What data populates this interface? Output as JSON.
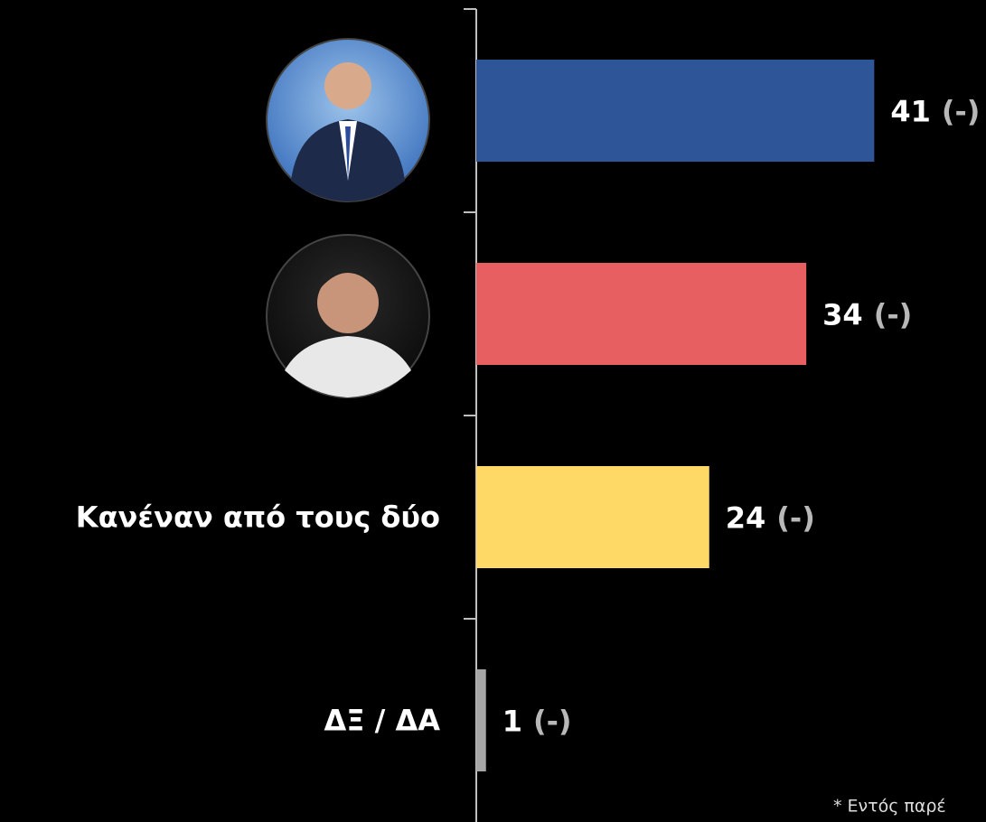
{
  "chart_data": {
    "type": "hbar",
    "categories": [
      null,
      null,
      "Κανέναν από τους δύο",
      "ΔΞ / ΔΑ"
    ],
    "values": [
      41,
      34,
      24,
      1
    ],
    "change_labels": [
      "(-)",
      "(-)",
      "(-)",
      "(-)"
    ],
    "colors": [
      "#2e5597",
      "#e85f61",
      "#ffd966",
      "#a6a6a6"
    ],
    "xlim": [
      0,
      50
    ],
    "footnote": "* Εντός παρέ"
  }
}
